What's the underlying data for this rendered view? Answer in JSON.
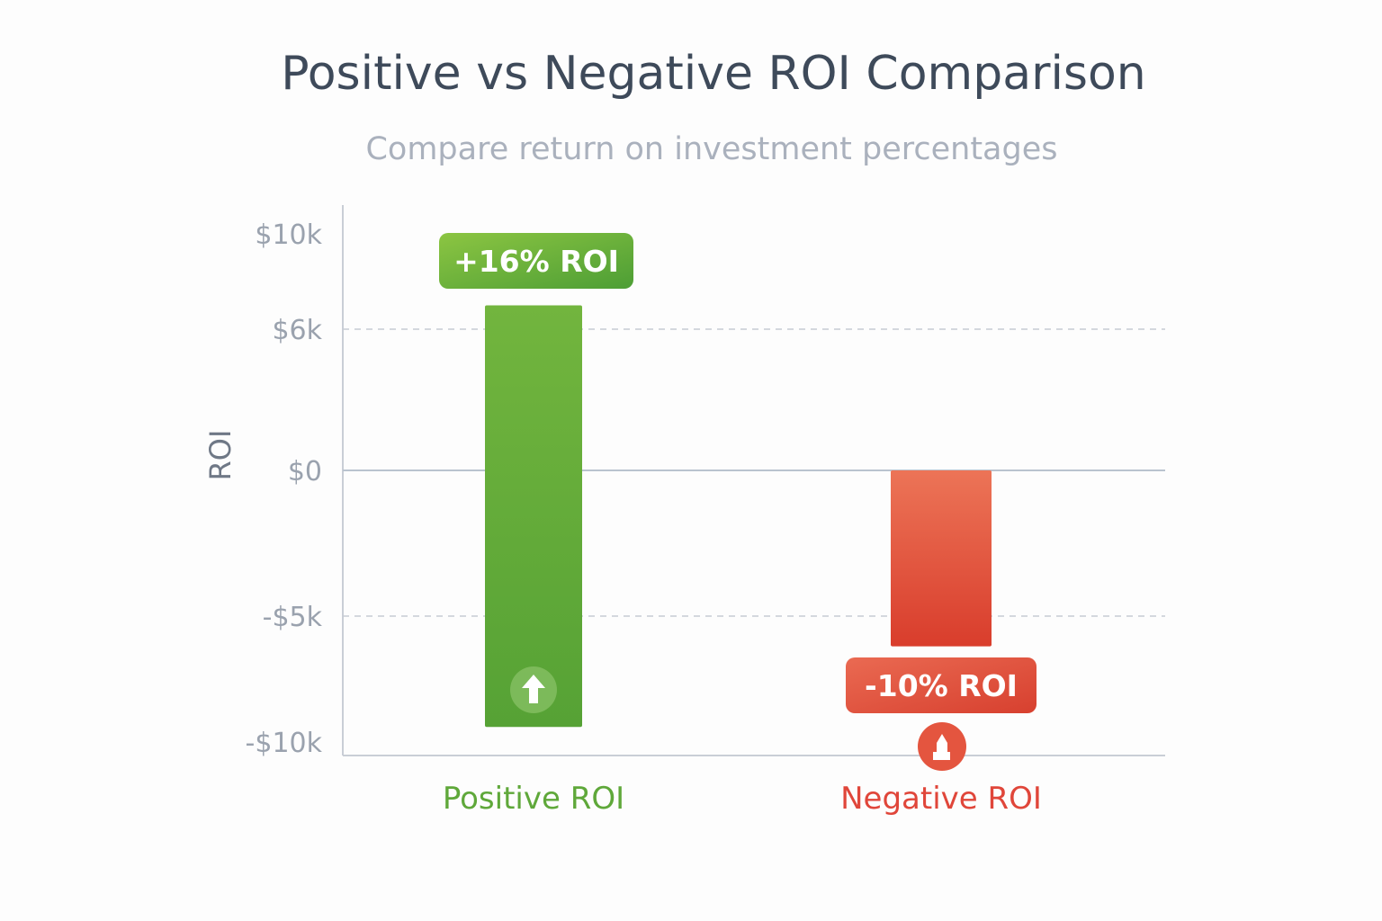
{
  "chart_data": {
    "type": "bar",
    "title": "Positive vs Negative ROI Comparison",
    "subtitle": "Compare return on investment percentages",
    "xlabel": "",
    "ylabel": "ROI",
    "yticks": [
      {
        "value": 10000,
        "label": "$10k"
      },
      {
        "value": 6000,
        "label": "$6k"
      },
      {
        "value": 0,
        "label": "$0"
      },
      {
        "value": -5000,
        "label": "-$5k"
      },
      {
        "value": -10000,
        "label": "-$10k"
      }
    ],
    "ylim": [
      -10000,
      10000
    ],
    "grid": {
      "dashed_at": [
        6000,
        -5000
      ],
      "solid_at": [
        0
      ]
    },
    "categories": [
      "Positive ROI",
      "Negative ROI"
    ],
    "bars": [
      {
        "name": "Positive ROI",
        "start": -9400,
        "end": 7000,
        "annotation": "+16% ROI",
        "icon": "arrow-up-icon",
        "color": "#5fa83a",
        "label_color": "#5fa83a"
      },
      {
        "name": "Negative ROI",
        "start": 0,
        "end": -6200,
        "annotation": "-10% ROI",
        "icon": "down-hand-icon",
        "color": "#e0503a",
        "label_color": "#e0463a"
      }
    ]
  }
}
